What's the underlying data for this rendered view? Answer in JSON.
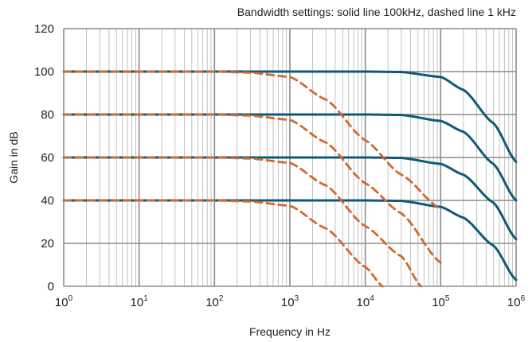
{
  "chart_data": {
    "type": "line",
    "title": "Bandwidth settings: solid line 100kHz, dashed line 1 kHz",
    "xlabel": "Frequency in Hz",
    "ylabel": "Gain in dB",
    "x_scale": "log",
    "xlim": [
      1,
      1000000
    ],
    "ylim": [
      0,
      120
    ],
    "x_ticks": [
      {
        "base": "10",
        "exp": "0"
      },
      {
        "base": "10",
        "exp": "1"
      },
      {
        "base": "10",
        "exp": "2"
      },
      {
        "base": "10",
        "exp": "3"
      },
      {
        "base": "10",
        "exp": "4"
      },
      {
        "base": "10",
        "exp": "5"
      },
      {
        "base": "10",
        "exp": "6"
      }
    ],
    "y_ticks": [
      "0",
      "20",
      "40",
      "60",
      "80",
      "100",
      "120"
    ],
    "grid": true,
    "legend": "none",
    "colors": {
      "solid": "#0f5a78",
      "dashed": "#d2692f",
      "grid": "#b4b4b4",
      "major_grid": "#8c8c8c"
    },
    "series": [
      {
        "style": "solid",
        "bandwidth_hz": 100000,
        "gain_db": 100,
        "x_end": 1000000,
        "points": [
          [
            1,
            100
          ],
          [
            10000,
            100
          ],
          [
            30000,
            99.8
          ],
          [
            100000,
            97.5
          ],
          [
            200000,
            91.5
          ],
          [
            500000,
            76
          ],
          [
            1000000,
            58
          ]
        ]
      },
      {
        "style": "solid",
        "bandwidth_hz": 100000,
        "gain_db": 80,
        "x_end": 1000000,
        "points": [
          [
            1,
            80
          ],
          [
            10000,
            80
          ],
          [
            30000,
            79.8
          ],
          [
            100000,
            77
          ],
          [
            200000,
            72
          ],
          [
            500000,
            57
          ],
          [
            1000000,
            40
          ]
        ]
      },
      {
        "style": "solid",
        "bandwidth_hz": 100000,
        "gain_db": 60,
        "x_end": 1000000,
        "points": [
          [
            1,
            60
          ],
          [
            10000,
            60
          ],
          [
            30000,
            59.8
          ],
          [
            100000,
            57
          ],
          [
            200000,
            52
          ],
          [
            500000,
            39
          ],
          [
            1000000,
            22
          ]
        ]
      },
      {
        "style": "solid",
        "bandwidth_hz": 100000,
        "gain_db": 40,
        "x_end": 1000000,
        "points": [
          [
            1,
            40
          ],
          [
            10000,
            40
          ],
          [
            30000,
            39.8
          ],
          [
            100000,
            37
          ],
          [
            200000,
            32
          ],
          [
            500000,
            19
          ],
          [
            1000000,
            3
          ]
        ]
      },
      {
        "style": "dashed",
        "bandwidth_hz": 1000,
        "gain_db": 100,
        "x_end": 100000,
        "points": [
          [
            1,
            100
          ],
          [
            100,
            100
          ],
          [
            300,
            99.5
          ],
          [
            1000,
            97.5
          ],
          [
            3000,
            87
          ],
          [
            10000,
            68
          ],
          [
            30000,
            52
          ],
          [
            100000,
            36
          ]
        ]
      },
      {
        "style": "dashed",
        "bandwidth_hz": 1000,
        "gain_db": 80,
        "x_end": 100000,
        "points": [
          [
            1,
            80
          ],
          [
            100,
            80
          ],
          [
            300,
            79.5
          ],
          [
            1000,
            77.5
          ],
          [
            3000,
            67
          ],
          [
            10000,
            48
          ],
          [
            30000,
            34
          ],
          [
            100000,
            11
          ]
        ]
      },
      {
        "style": "dashed",
        "bandwidth_hz": 1000,
        "gain_db": 60,
        "x_end": 100000,
        "points": [
          [
            1,
            60
          ],
          [
            100,
            60
          ],
          [
            300,
            59.5
          ],
          [
            1000,
            57.5
          ],
          [
            3000,
            47
          ],
          [
            10000,
            28
          ],
          [
            30000,
            14
          ],
          [
            55000,
            0
          ]
        ]
      },
      {
        "style": "dashed",
        "bandwidth_hz": 1000,
        "gain_db": 40,
        "x_end": 100000,
        "points": [
          [
            1,
            40
          ],
          [
            100,
            40
          ],
          [
            300,
            39.5
          ],
          [
            1000,
            37.5
          ],
          [
            3000,
            27
          ],
          [
            10000,
            9
          ],
          [
            17000,
            0
          ]
        ]
      }
    ]
  }
}
